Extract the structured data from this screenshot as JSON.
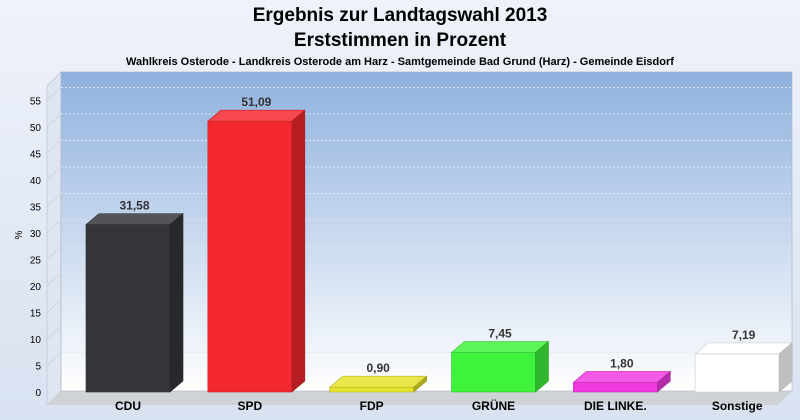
{
  "chart_data": {
    "type": "bar",
    "title": "Ergebnis zur Landtagswahl 2013",
    "title_line2": "Erststimmen in Prozent",
    "subtitle": "Wahlkreis Osterode - Landkreis Osterode am Harz - Samtgemeinde Bad Grund (Harz) - Gemeinde Eisdorf",
    "ylabel": "%",
    "xlabel": "",
    "ylim": [
      0,
      58
    ],
    "yticks": [
      0,
      5,
      10,
      15,
      20,
      25,
      30,
      35,
      40,
      45,
      50,
      55
    ],
    "grid": true,
    "categories": [
      "CDU",
      "SPD",
      "FDP",
      "GRÜNE",
      "DIE LINKE.",
      "Sonstige"
    ],
    "values": [
      31.58,
      51.09,
      0.9,
      7.45,
      1.8,
      7.19
    ],
    "value_labels": [
      "31,58",
      "51,09",
      "0,90",
      "7,45",
      "1,80",
      "7,19"
    ],
    "colors": [
      "#35363a",
      "#f4282f",
      "#e4e22a",
      "#3ff23c",
      "#f13ae2",
      "#ffffff"
    ]
  }
}
